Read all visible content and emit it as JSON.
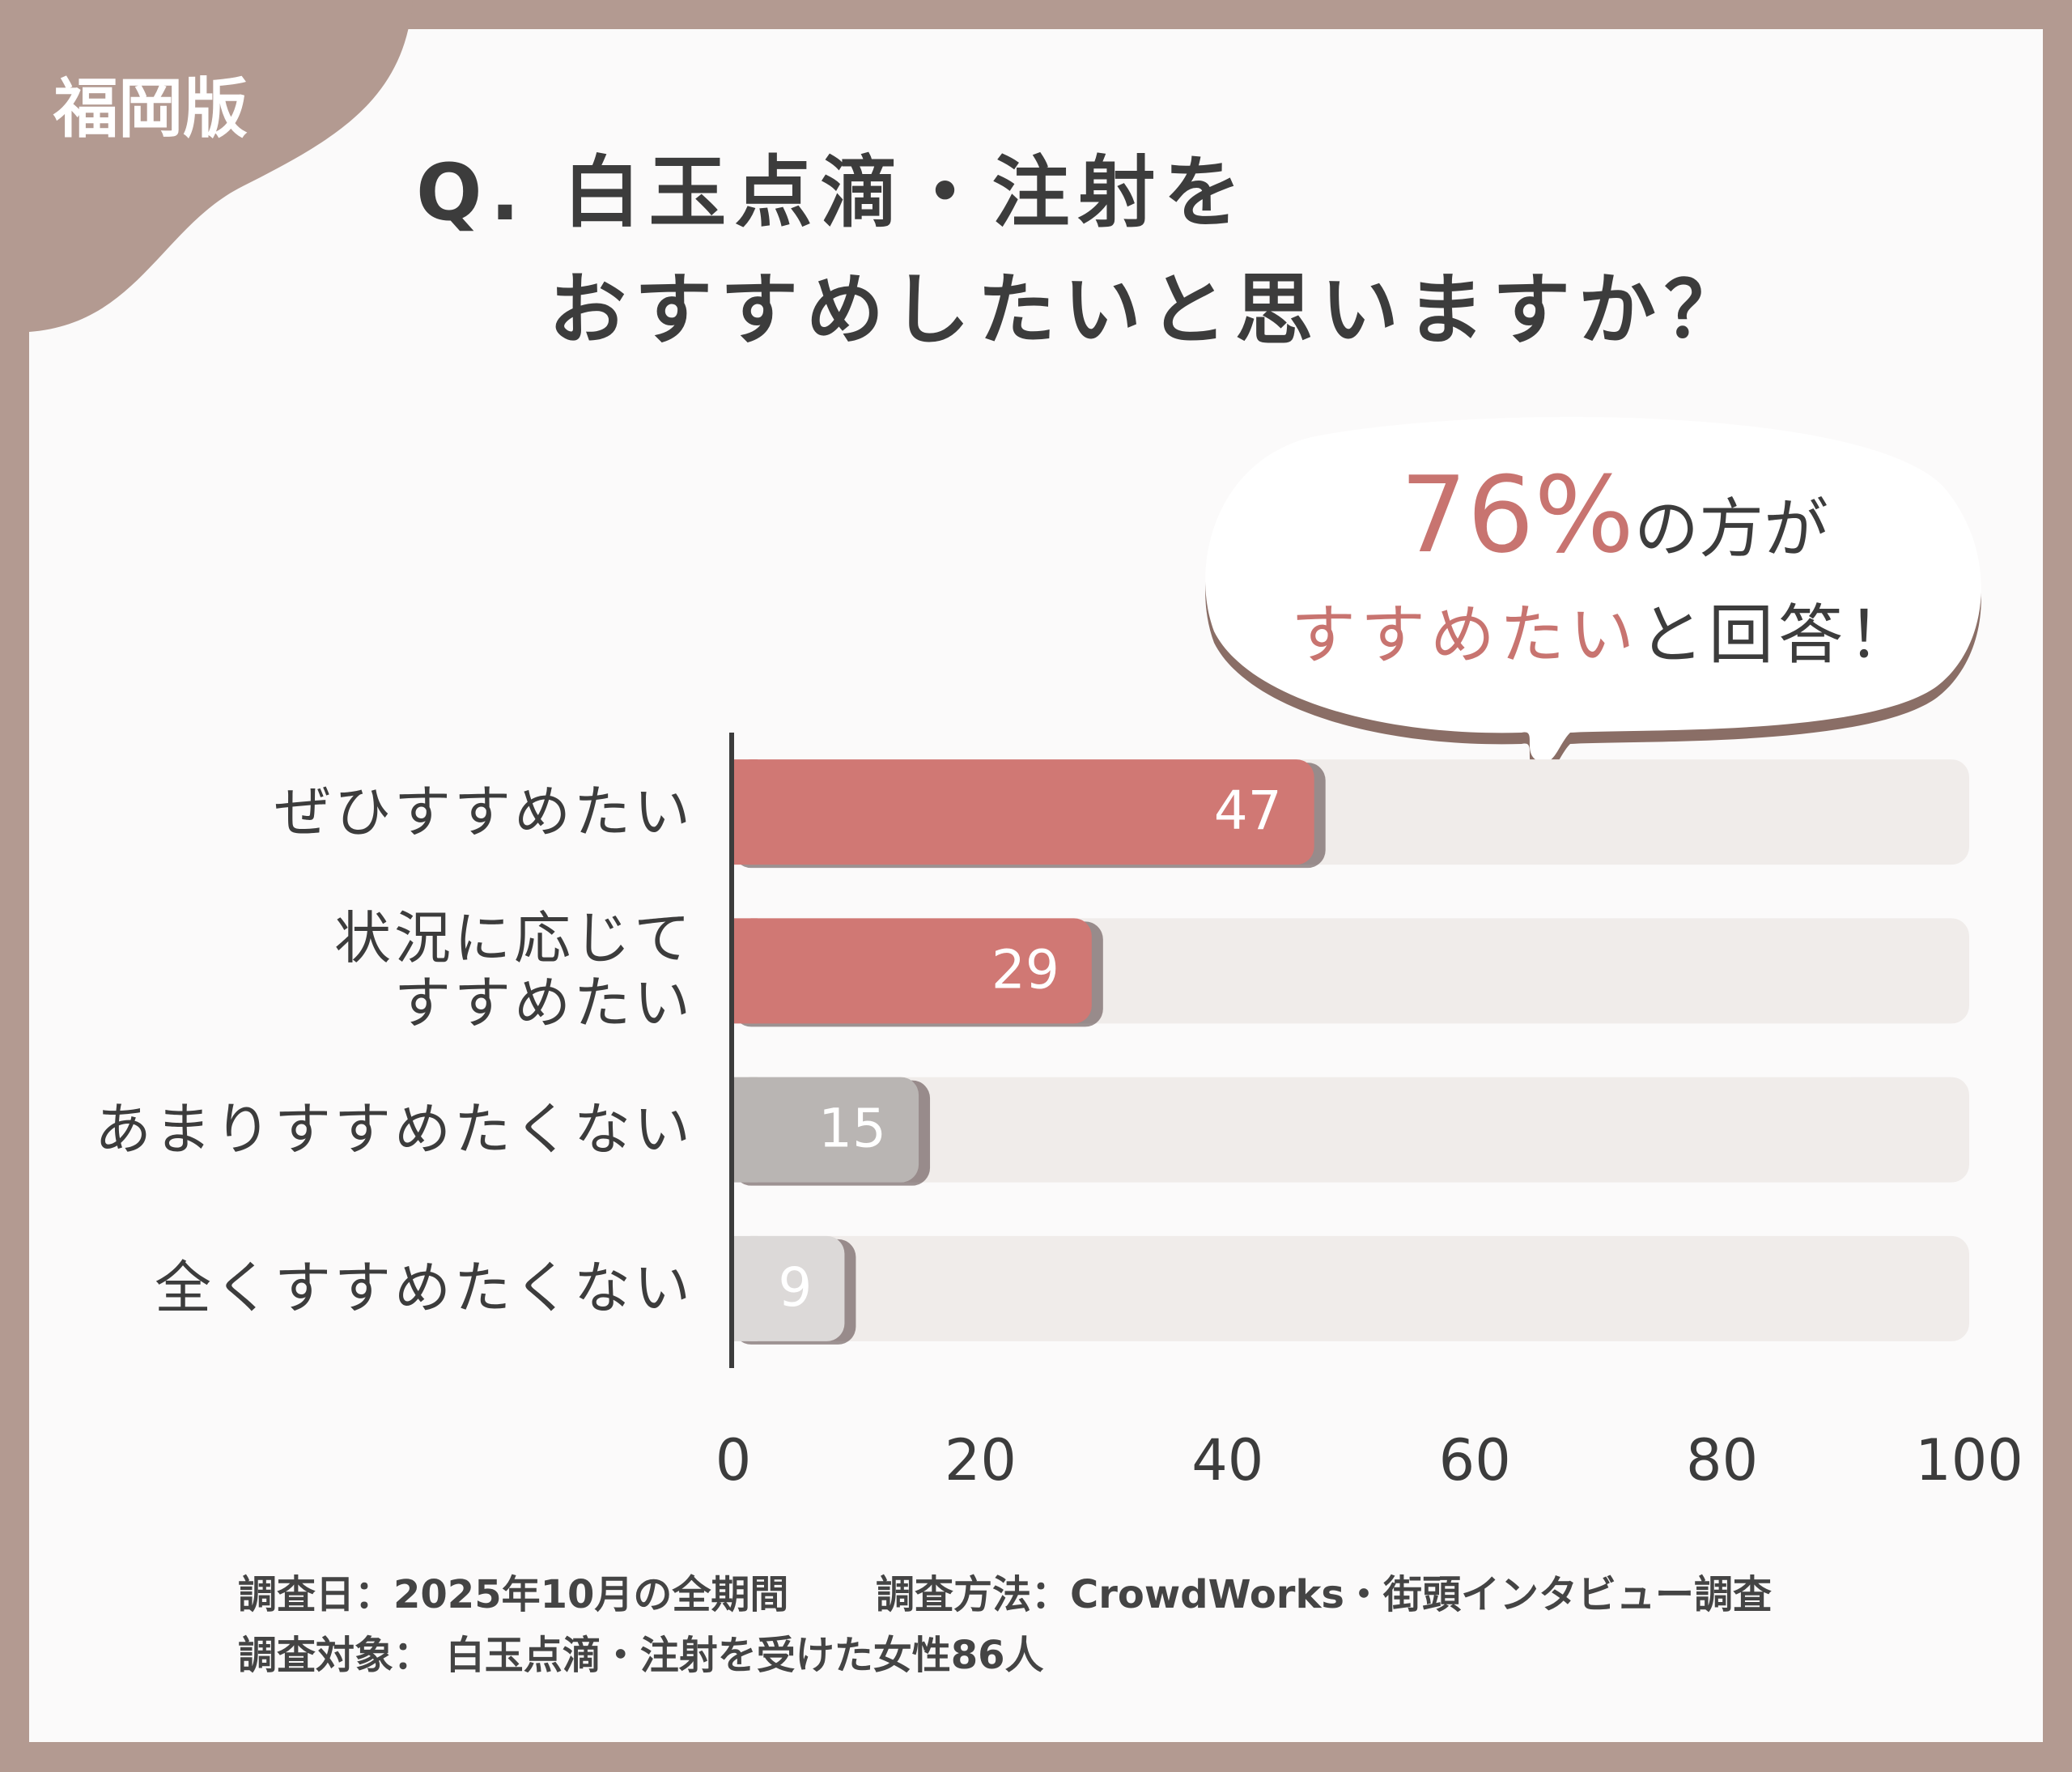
{
  "badge": "福岡版",
  "chart_data": {
    "type": "bar",
    "orientation": "horizontal",
    "title": [
      "Q. 白玉点滴・注射を",
      "おすすめしたいと思いますか？"
    ],
    "categories": [
      "ぜひすすめたい",
      "状況に応じて\nすすめたい",
      "あまりすすめたくない",
      "全くすすめたくない"
    ],
    "values": [
      47,
      29,
      15,
      9
    ],
    "colors": [
      "#d07874",
      "#d07874",
      "#b9b5b3",
      "#dcd9d8"
    ],
    "xlim": [
      0,
      100
    ],
    "xticks": [
      0,
      20,
      40,
      60,
      80,
      100
    ],
    "grid": false,
    "annotation": {
      "line1": [
        "76%",
        "の方が"
      ],
      "line2": [
        "すすめたい",
        "と回答！"
      ]
    }
  },
  "footnotes": [
    "調査日：2025年10月の全期間",
    "調査方法：CrowdWorks・街頭インタビュー調査",
    "調査対象： 白玉点滴・注射を受けた女性86人"
  ]
}
